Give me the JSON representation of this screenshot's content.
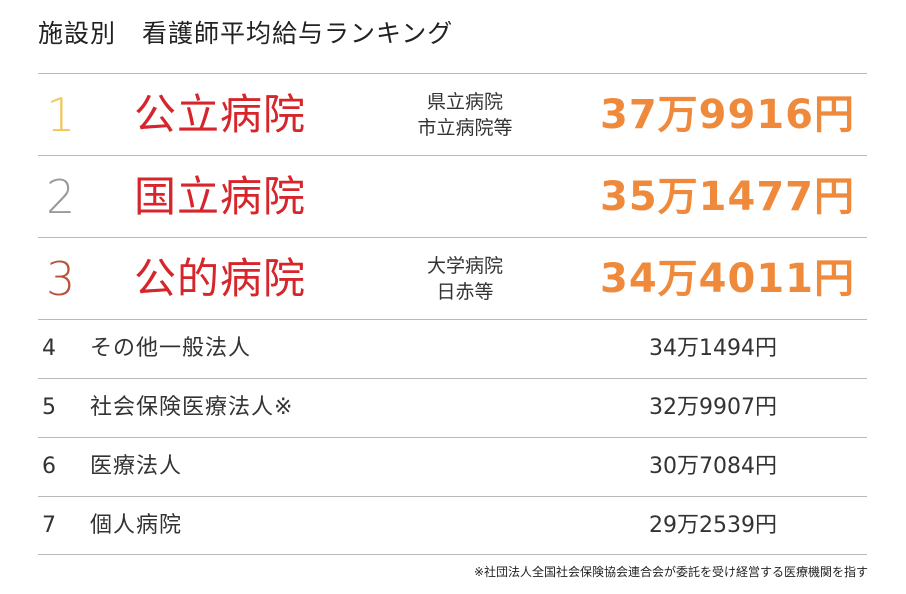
{
  "title": "施設別　看護師平均給与ランキング",
  "colors": {
    "rank1": "#f2c65a",
    "rank2": "#9a9a9a",
    "rank3": "#b8523a",
    "name_red": "#d6262b",
    "salary_orange": "#ef8a3c",
    "divider": "#b9b9b9"
  },
  "rankings": [
    {
      "rank": "1",
      "name": "公立病院",
      "sub1": "県立病院",
      "sub2": "市立病院等",
      "salary": "37万9916円"
    },
    {
      "rank": "2",
      "name": "国立病院",
      "sub1": "",
      "sub2": "",
      "salary": "35万1477円"
    },
    {
      "rank": "3",
      "name": "公的病院",
      "sub1": "大学病院",
      "sub2": "日赤等",
      "salary": "34万4011円"
    },
    {
      "rank": "4",
      "name": "その他一般法人",
      "salary": "34万1494円"
    },
    {
      "rank": "5",
      "name": "社会保険医療法人※",
      "salary": "32万9907円"
    },
    {
      "rank": "6",
      "name": "医療法人",
      "salary": "30万7084円"
    },
    {
      "rank": "7",
      "name": "個人病院",
      "salary": "29万2539円"
    }
  ],
  "footnote": "※社団法人全国社会保険協会連合会が委託を受け経営する医療機関を指す"
}
